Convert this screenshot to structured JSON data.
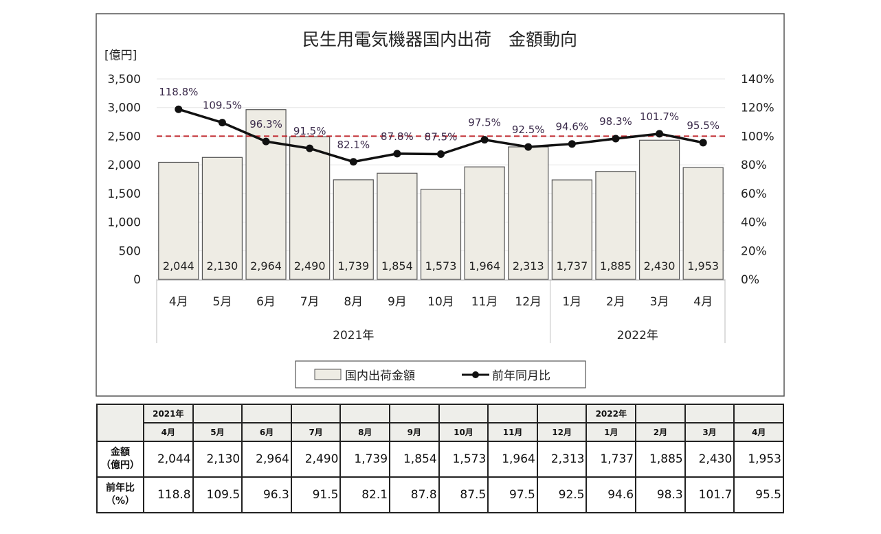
{
  "chart_data": {
    "type": "bar+line",
    "title": "民生用電気機器国内出荷　金額動向",
    "ylabel": "[億円]",
    "ylim": [
      0,
      3500
    ],
    "y_ticks": [
      "0",
      "500",
      "1,000",
      "1,500",
      "2,000",
      "2,500",
      "3,000",
      "3,500"
    ],
    "y2lim": [
      0,
      140
    ],
    "y2_ticks": [
      "0%",
      "20%",
      "40%",
      "60%",
      "80%",
      "100%",
      "120%",
      "140%"
    ],
    "reference_line": {
      "value": 100,
      "axis": "y2",
      "color": "#c0272d",
      "style": "dashed"
    },
    "categories": [
      "4月",
      "5月",
      "6月",
      "7月",
      "8月",
      "9月",
      "10月",
      "11月",
      "12月",
      "1月",
      "2月",
      "3月",
      "4月"
    ],
    "year_groups": [
      {
        "label": "2021年",
        "count": 9
      },
      {
        "label": "2022年",
        "count": 4
      }
    ],
    "series": [
      {
        "name": "国内出荷金額",
        "type": "bar",
        "axis": "y",
        "color": "#eeece4",
        "values": [
          2044,
          2130,
          2964,
          2490,
          1739,
          1854,
          1573,
          1964,
          2313,
          1737,
          1885,
          2430,
          1953
        ],
        "labels": [
          "2,044",
          "2,130",
          "2,964",
          "2,490",
          "1,739",
          "1,854",
          "1,573",
          "1,964",
          "2,313",
          "1,737",
          "1,885",
          "2,430",
          "1,953"
        ]
      },
      {
        "name": "前年同月比",
        "type": "line",
        "axis": "y2",
        "color": "#111111",
        "values": [
          118.8,
          109.5,
          96.3,
          91.5,
          82.1,
          87.8,
          87.5,
          97.5,
          92.5,
          94.6,
          98.3,
          101.7,
          95.5
        ],
        "labels": [
          "118.8%",
          "109.5%",
          "96.3%",
          "91.5%",
          "82.1%",
          "87.8%",
          "87.5%",
          "97.5%",
          "92.5%",
          "94.6%",
          "98.3%",
          "101.7%",
          "95.5%"
        ]
      }
    ],
    "grid": true,
    "legend": "bottom"
  },
  "table": {
    "years": [
      "2021年",
      "2022年"
    ],
    "months": [
      "4月",
      "5月",
      "6月",
      "7月",
      "8月",
      "9月",
      "10月",
      "11月",
      "12月",
      "1月",
      "2月",
      "3月",
      "4月"
    ],
    "row_amount": {
      "label1": "金額",
      "label2": "（億円）",
      "values": [
        "2,044",
        "2,130",
        "2,964",
        "2,490",
        "1,739",
        "1,854",
        "1,573",
        "1,964",
        "2,313",
        "1,737",
        "1,885",
        "2,430",
        "1,953"
      ]
    },
    "row_ratio": {
      "label1": "前年比",
      "label2": "（%）",
      "values": [
        "118.8",
        "109.5",
        "96.3",
        "91.5",
        "82.1",
        "87.8",
        "87.5",
        "97.5",
        "92.5",
        "94.6",
        "98.3",
        "101.7",
        "95.5"
      ]
    }
  }
}
